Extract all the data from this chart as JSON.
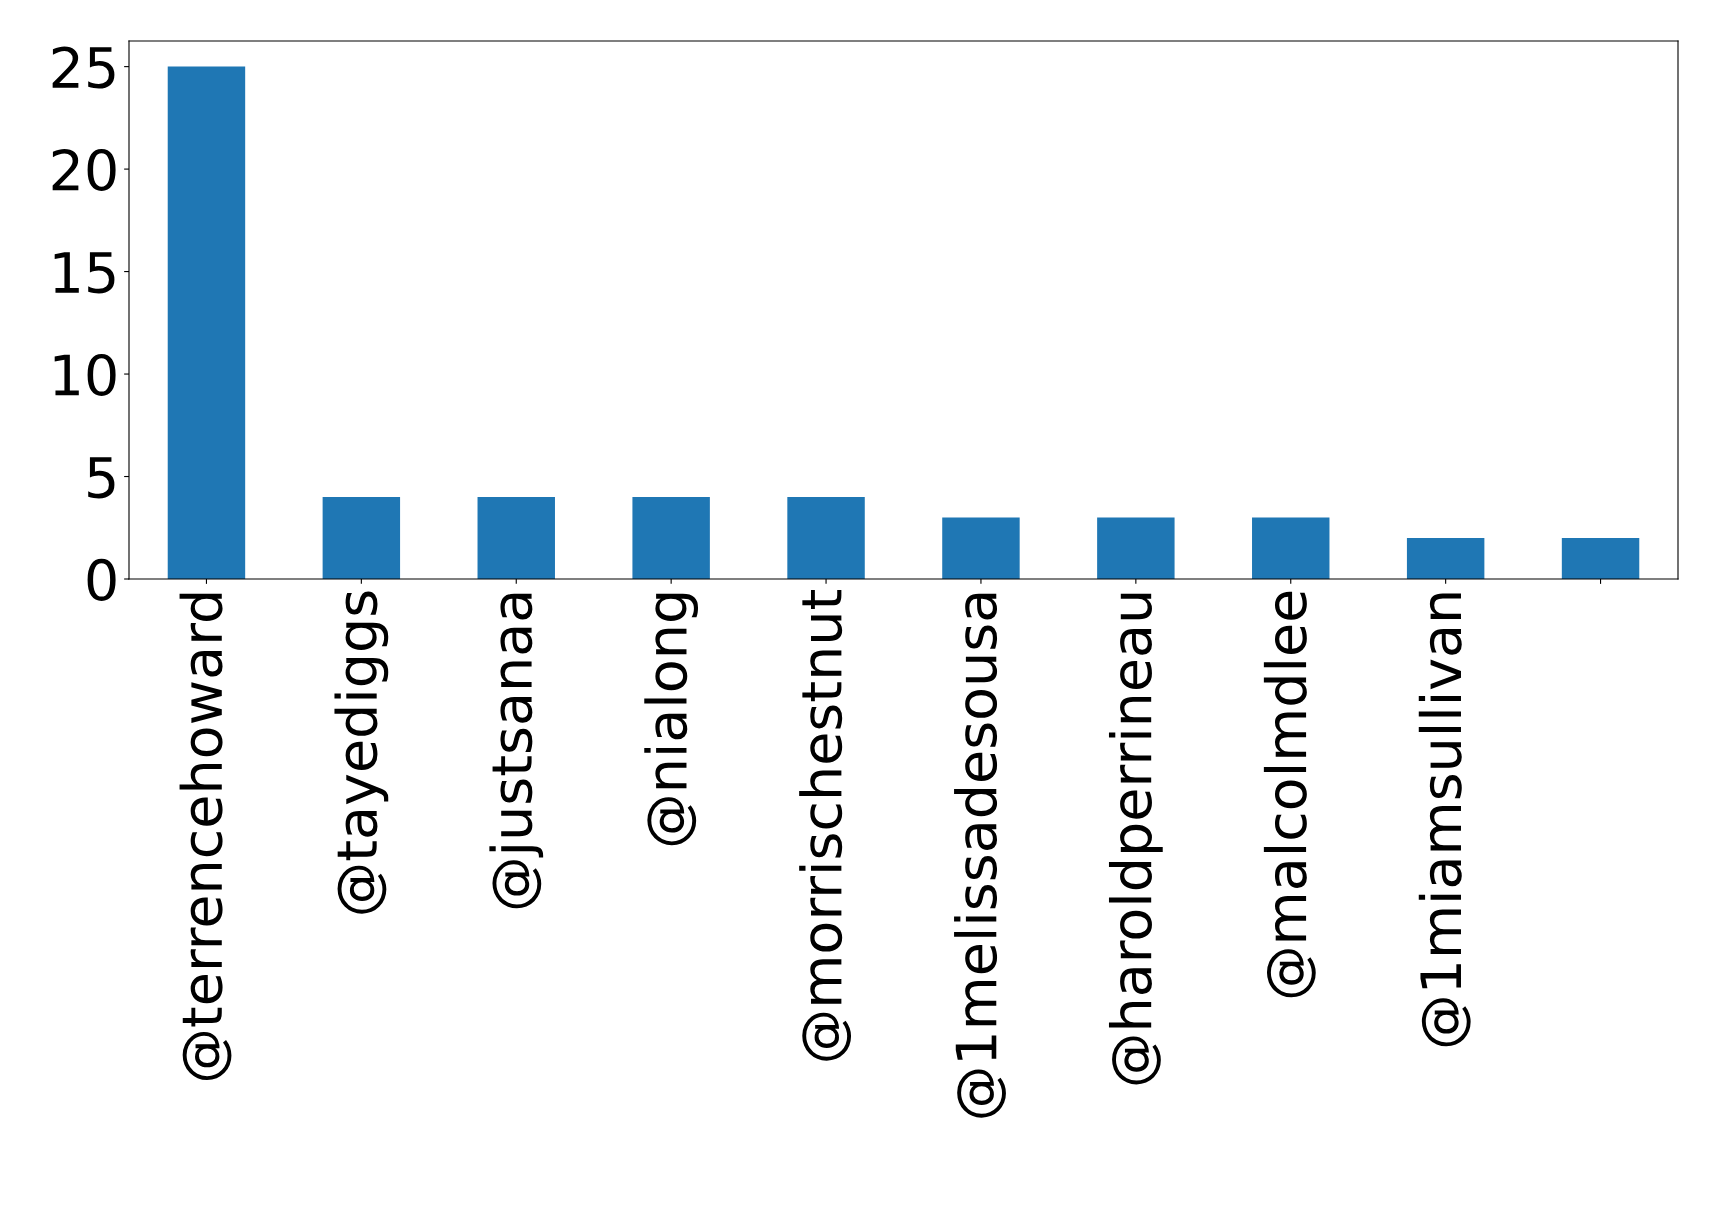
{
  "chart_data": {
    "type": "bar",
    "categories": [
      "@terrencehoward",
      "@tayediggs",
      "@justsanaa",
      "@nialong",
      "@morrischestnut",
      "@1melissadesousa",
      "@haroldperrineau",
      "@malcolmdlee",
      "@1miamsullivan",
      null
    ],
    "values": [
      25,
      4,
      4,
      4,
      4,
      3,
      3,
      3,
      2,
      2
    ],
    "color": "#1f77b4",
    "ylim": [
      0,
      26.25
    ],
    "yticks": [
      0,
      5,
      10,
      15,
      20,
      25
    ],
    "grid": false,
    "legend": false
  }
}
